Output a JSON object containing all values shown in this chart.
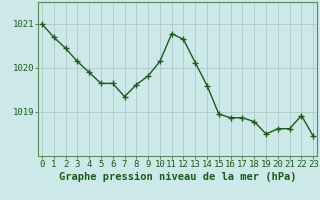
{
  "x": [
    0,
    1,
    2,
    3,
    4,
    5,
    6,
    7,
    8,
    9,
    10,
    11,
    12,
    13,
    14,
    15,
    16,
    17,
    18,
    19,
    20,
    21,
    22,
    23
  ],
  "y": [
    1021.0,
    1020.7,
    1020.45,
    1020.15,
    1019.9,
    1019.65,
    1019.65,
    1019.35,
    1019.62,
    1019.82,
    1020.15,
    1020.78,
    1020.65,
    1020.12,
    1019.6,
    1018.95,
    1018.87,
    1018.87,
    1018.78,
    1018.5,
    1018.62,
    1018.62,
    1018.92,
    1018.45
  ],
  "line_color": "#1a5c1a",
  "marker_color": "#1a5c1a",
  "bg_color": "#cce8e8",
  "grid_color": "#b0c8c8",
  "xlabel": "Graphe pression niveau de la mer (hPa)",
  "xlabel_color": "#1a5c1a",
  "tick_color": "#1a5c1a",
  "ylim": [
    1018.0,
    1021.5
  ],
  "yticks": [
    1019,
    1020,
    1021
  ],
  "xticks": [
    0,
    1,
    2,
    3,
    4,
    5,
    6,
    7,
    8,
    9,
    10,
    11,
    12,
    13,
    14,
    15,
    16,
    17,
    18,
    19,
    20,
    21,
    22,
    23
  ],
  "xlim": [
    -0.3,
    23.3
  ],
  "spine_color": "#5a8a5a",
  "marker_size": 2.8,
  "line_width": 1.0,
  "xlabel_fontsize": 7.5,
  "tick_fontsize": 6.5
}
